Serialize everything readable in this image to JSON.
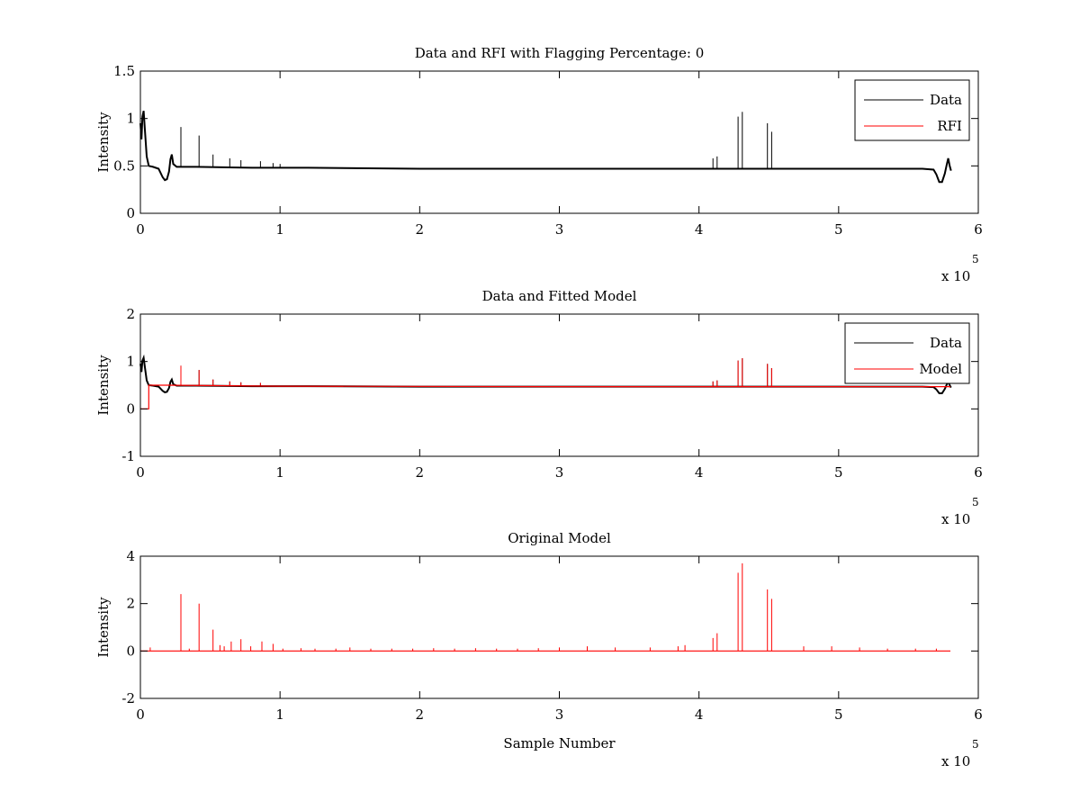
{
  "colors": {
    "data": "#000000",
    "rfi": "#ff0000",
    "model": "#ff0000",
    "axes": "#000000",
    "background": "#ffffff"
  },
  "chart_data": [
    {
      "type": "line",
      "title": "Data and RFI with Flagging Percentage: 0",
      "xlabel": "",
      "ylabel": "Intensity",
      "xlim": [
        0,
        600000
      ],
      "ylim": [
        0,
        1.5
      ],
      "xticks": [
        0,
        1,
        2,
        3,
        4,
        5,
        6
      ],
      "yticks": [
        0,
        0.5,
        1,
        1.5
      ],
      "x_multiplier_base": "x 10",
      "x_multiplier_exp": "5",
      "legend": {
        "position": "top-right",
        "entries": [
          "Data",
          "RFI"
        ]
      },
      "series": [
        {
          "name": "Data",
          "color": "#000000",
          "baseline": [
            [
              0,
              0.95
            ],
            [
              800,
              0.78
            ],
            [
              1500,
              1.02
            ],
            [
              2300,
              1.08
            ],
            [
              3200,
              0.88
            ],
            [
              4500,
              0.6
            ],
            [
              6000,
              0.5
            ],
            [
              9000,
              0.49
            ],
            [
              13000,
              0.47
            ],
            [
              16000,
              0.38
            ],
            [
              17500,
              0.35
            ],
            [
              19000,
              0.36
            ],
            [
              20500,
              0.44
            ],
            [
              21500,
              0.57
            ],
            [
              22500,
              0.62
            ],
            [
              23500,
              0.52
            ],
            [
              26000,
              0.49
            ],
            [
              40000,
              0.49
            ],
            [
              80000,
              0.48
            ],
            [
              120000,
              0.48
            ],
            [
              200000,
              0.47
            ],
            [
              300000,
              0.47
            ],
            [
              400000,
              0.47
            ],
            [
              500000,
              0.47
            ],
            [
              560000,
              0.47
            ],
            [
              568000,
              0.46
            ],
            [
              570000,
              0.41
            ],
            [
              572000,
              0.33
            ],
            [
              574000,
              0.33
            ],
            [
              576000,
              0.42
            ],
            [
              577500,
              0.52
            ],
            [
              578500,
              0.58
            ],
            [
              579500,
              0.5
            ],
            [
              580500,
              0.45
            ]
          ],
          "spikes": [
            [
              29000,
              0.91
            ],
            [
              42000,
              0.82
            ],
            [
              52000,
              0.62
            ],
            [
              64000,
              0.58
            ],
            [
              72000,
              0.56
            ],
            [
              86000,
              0.55
            ],
            [
              95000,
              0.53
            ],
            [
              100000,
              0.52
            ],
            [
              410000,
              0.58
            ],
            [
              413000,
              0.6
            ],
            [
              428000,
              1.02
            ],
            [
              431000,
              1.07
            ],
            [
              449000,
              0.95
            ],
            [
              452000,
              0.86
            ]
          ]
        },
        {
          "name": "RFI",
          "color": "#ff0000",
          "points": []
        }
      ]
    },
    {
      "type": "line",
      "title": "Data and Fitted Model",
      "xlabel": "",
      "ylabel": "Intensity",
      "xlim": [
        0,
        600000
      ],
      "ylim": [
        -1,
        2
      ],
      "xticks": [
        0,
        1,
        2,
        3,
        4,
        5,
        6
      ],
      "yticks": [
        -1,
        0,
        1,
        2
      ],
      "x_multiplier_base": "x 10",
      "x_multiplier_exp": "5",
      "legend": {
        "position": "top-right",
        "entries": [
          "Data",
          "Model"
        ]
      },
      "series": [
        {
          "name": "Data",
          "color": "#000000",
          "baseline": [
            [
              0,
              0.95
            ],
            [
              800,
              0.78
            ],
            [
              1500,
              1.02
            ],
            [
              2300,
              1.08
            ],
            [
              3200,
              0.88
            ],
            [
              4500,
              0.6
            ],
            [
              6000,
              0.5
            ],
            [
              9000,
              0.49
            ],
            [
              13000,
              0.47
            ],
            [
              16000,
              0.38
            ],
            [
              17500,
              0.35
            ],
            [
              19000,
              0.36
            ],
            [
              20500,
              0.44
            ],
            [
              21500,
              0.57
            ],
            [
              22500,
              0.62
            ],
            [
              23500,
              0.52
            ],
            [
              26000,
              0.49
            ],
            [
              40000,
              0.49
            ],
            [
              80000,
              0.48
            ],
            [
              120000,
              0.48
            ],
            [
              200000,
              0.47
            ],
            [
              300000,
              0.47
            ],
            [
              400000,
              0.47
            ],
            [
              500000,
              0.47
            ],
            [
              560000,
              0.47
            ],
            [
              568000,
              0.46
            ],
            [
              570000,
              0.41
            ],
            [
              572000,
              0.33
            ],
            [
              574000,
              0.33
            ],
            [
              576000,
              0.42
            ],
            [
              577500,
              0.52
            ],
            [
              578500,
              0.58
            ],
            [
              579500,
              0.5
            ],
            [
              580500,
              0.45
            ]
          ],
          "spikes": [
            [
              29000,
              0.91
            ],
            [
              42000,
              0.82
            ],
            [
              52000,
              0.62
            ],
            [
              64000,
              0.58
            ],
            [
              72000,
              0.56
            ],
            [
              86000,
              0.55
            ],
            [
              410000,
              0.58
            ],
            [
              413000,
              0.6
            ],
            [
              428000,
              1.02
            ],
            [
              431000,
              1.07
            ],
            [
              449000,
              0.95
            ],
            [
              452000,
              0.86
            ]
          ]
        },
        {
          "name": "Model",
          "color": "#ff0000",
          "baseline": [
            [
              0,
              0.0
            ],
            [
              6000,
              0.0
            ],
            [
              6000,
              0.5
            ],
            [
              20000,
              0.5
            ],
            [
              100000,
              0.48
            ],
            [
              300000,
              0.47
            ],
            [
              500000,
              0.47
            ],
            [
              580000,
              0.47
            ]
          ],
          "spikes": [
            [
              29000,
              0.91
            ],
            [
              42000,
              0.82
            ],
            [
              52000,
              0.62
            ],
            [
              64000,
              0.58
            ],
            [
              72000,
              0.56
            ],
            [
              86000,
              0.55
            ],
            [
              410000,
              0.58
            ],
            [
              413000,
              0.6
            ],
            [
              428000,
              1.02
            ],
            [
              431000,
              1.07
            ],
            [
              449000,
              0.95
            ],
            [
              452000,
              0.86
            ]
          ]
        }
      ]
    },
    {
      "type": "line",
      "title": "Original Model",
      "xlabel": "Sample Number",
      "ylabel": "Intensity",
      "xlim": [
        0,
        600000
      ],
      "ylim": [
        -2,
        4
      ],
      "xticks": [
        0,
        1,
        2,
        3,
        4,
        5,
        6
      ],
      "yticks": [
        -2,
        0,
        2,
        4
      ],
      "x_multiplier_base": "x 10",
      "x_multiplier_exp": "5",
      "legend": null,
      "series": [
        {
          "name": "",
          "color": "#ff0000",
          "baseline": [
            [
              0,
              0.0
            ],
            [
              580000,
              0.0
            ]
          ],
          "spikes": [
            [
              7000,
              0.15
            ],
            [
              29000,
              2.4
            ],
            [
              35000,
              0.1
            ],
            [
              42000,
              2.0
            ],
            [
              52000,
              0.9
            ],
            [
              57000,
              0.25
            ],
            [
              60000,
              0.2
            ],
            [
              65000,
              0.4
            ],
            [
              72000,
              0.5
            ],
            [
              79000,
              0.2
            ],
            [
              87000,
              0.4
            ],
            [
              95000,
              0.3
            ],
            [
              102000,
              0.1
            ],
            [
              115000,
              0.12
            ],
            [
              125000,
              0.1
            ],
            [
              140000,
              0.1
            ],
            [
              150000,
              0.15
            ],
            [
              165000,
              0.1
            ],
            [
              180000,
              0.1
            ],
            [
              195000,
              0.1
            ],
            [
              210000,
              0.12
            ],
            [
              225000,
              0.1
            ],
            [
              240000,
              0.12
            ],
            [
              255000,
              0.1
            ],
            [
              270000,
              0.1
            ],
            [
              285000,
              0.12
            ],
            [
              300000,
              0.15
            ],
            [
              320000,
              0.2
            ],
            [
              340000,
              0.15
            ],
            [
              365000,
              0.15
            ],
            [
              385000,
              0.2
            ],
            [
              390000,
              0.25
            ],
            [
              410000,
              0.55
            ],
            [
              413000,
              0.75
            ],
            [
              428000,
              3.3
            ],
            [
              431000,
              3.7
            ],
            [
              449000,
              2.6
            ],
            [
              452000,
              2.2
            ],
            [
              475000,
              0.2
            ],
            [
              495000,
              0.2
            ],
            [
              515000,
              0.15
            ],
            [
              535000,
              0.1
            ],
            [
              555000,
              0.1
            ],
            [
              570000,
              0.1
            ]
          ]
        }
      ]
    }
  ]
}
